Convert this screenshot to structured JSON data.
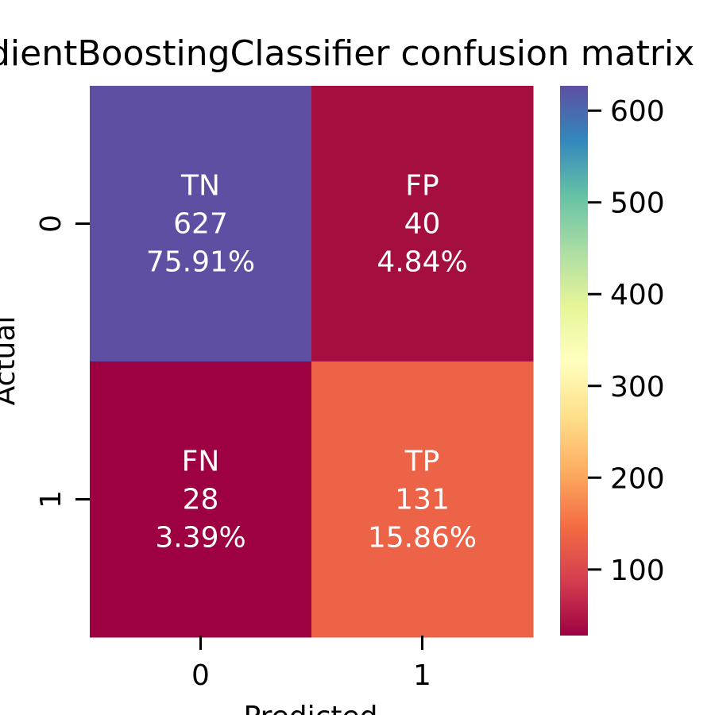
{
  "chart_data": {
    "type": "heatmap",
    "title": "GradientBoostingClassifier confusion matrix",
    "xlabel": "Predicted",
    "ylabel": "Actual",
    "x_categories": [
      "0",
      "1"
    ],
    "y_categories": [
      "0",
      "1"
    ],
    "values": [
      [
        627,
        40
      ],
      [
        28,
        131
      ]
    ],
    "cell_labels": [
      [
        {
          "name": "TN",
          "count": "627",
          "percent": "75.91%"
        },
        {
          "name": "FP",
          "count": "40",
          "percent": "4.84%"
        }
      ],
      [
        {
          "name": "FN",
          "count": "28",
          "percent": "3.39%"
        },
        {
          "name": "TP",
          "count": "131",
          "percent": "15.86%"
        }
      ]
    ],
    "colormap": "Spectral",
    "colorbar_range": [
      28,
      627
    ],
    "colorbar_ticks": [
      100,
      200,
      300,
      400,
      500,
      600
    ],
    "colors": {
      "tn": "#5e4fa2",
      "fp": "#a50f40",
      "fn": "#9e0142",
      "tp": "#ed6348"
    }
  }
}
